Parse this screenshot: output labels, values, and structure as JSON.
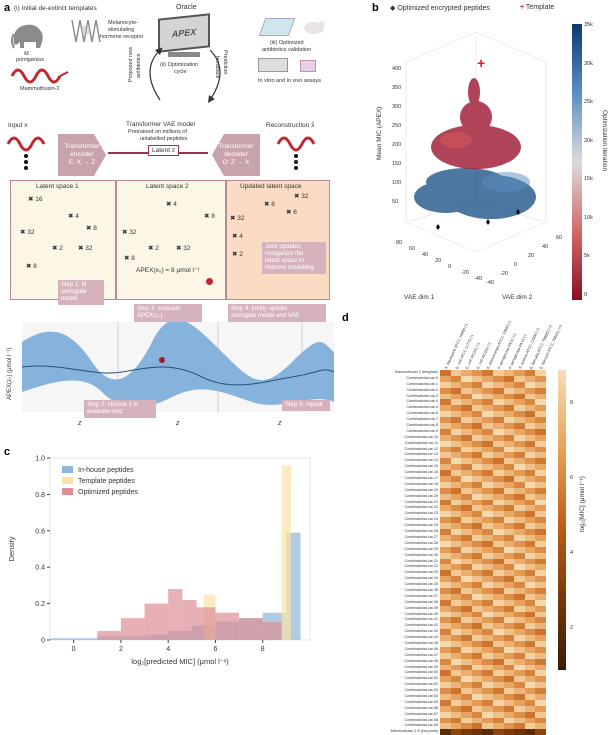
{
  "panel_a": {
    "letter": "a",
    "initial_title": "(i) Initial de-extinct templates",
    "species": "M.",
    "species2": "primigenius",
    "receptor": "Melanocyte-",
    "receptor2": "stimulating",
    "receptor3": "hormone receptor",
    "peptide": "Mammuthusin-2",
    "oracle_title": "Oracle",
    "oracle_screen": "APEX",
    "proposed": "Proposed new",
    "proposed2": "antibiotics",
    "cycle": "(ii) Optimization",
    "cycle2": "cycle",
    "feedback": "Prediction",
    "feedback2": "feedback",
    "validation": "(iii) Optimized",
    "validation2": "antibiotics validation",
    "assays": "In vitro and in vivo assays",
    "input": "Input x",
    "vae_title": "Transformer VAE model",
    "vae_sub": "Pretrained on millions of",
    "vae_sub2": "unlabelled peptides",
    "encoder": "Transformer",
    "encoder2": "encoder",
    "encoder3": "E: X → Z",
    "latent": "Latent z",
    "decoder": "Transformer",
    "decoder2": "decoder",
    "decoder3": "D: Z → X",
    "reconstruction": "Reconstruction x̂",
    "ls1": "Latent space 1",
    "ls2": "Latent space 2",
    "ls3": "Updated latent space",
    "apex_eq": "APEX(x₀) = 8 μmol l⁻¹",
    "joint": "Joint updates",
    "joint2": "reorganize the",
    "joint3": "latent space to",
    "joint4": "improve modelling",
    "step1": "Step 1: fit",
    "step1b": "surrogate",
    "step1c": "model",
    "step2": "Step 2: choose z to",
    "step2b": "evaluate next",
    "step3": "Step 3: evaluate",
    "step3b": "APEX(z₀)",
    "step4": "Step 4: jointly update",
    "step4b": "surrogate model and VAE",
    "step5": "Step 5: repeat",
    "y_axis": "APEX(z₀) (μmol l⁻¹)",
    "z1": "z",
    "z2": "z",
    "z3": "z",
    "nums_ls1": [
      "16",
      "4",
      "8",
      "32",
      "2",
      "32",
      "8"
    ],
    "nums_ls2": [
      "4",
      "8",
      "32",
      "2",
      "32",
      "8"
    ],
    "nums_ls3": [
      "32",
      "8",
      "6",
      "32",
      "4",
      "2"
    ]
  },
  "panel_b": {
    "letter": "b",
    "legend1": "Optimized encrypted peptides",
    "legend2": "Template",
    "zlabel": "Mean MIC (APEX)",
    "xlabel": "VAE dim 1",
    "ylabel": "VAE dim 2",
    "colorbar_label": "Optimization iteration",
    "colorbar_ticks": [
      "35k",
      "30k",
      "25k",
      "20k",
      "15k",
      "10k",
      "5k",
      "0"
    ],
    "z_ticks": [
      "400",
      "350",
      "300",
      "250",
      "200",
      "150",
      "100",
      "50"
    ],
    "x_ticks": [
      "80",
      "60",
      "40",
      "20",
      "0",
      "-20",
      "-40"
    ],
    "y_ticks": [
      "-40",
      "-20",
      "0",
      "20",
      "40",
      "60"
    ],
    "colors": {
      "low": "#b0102a",
      "high": "#0d3f73"
    }
  },
  "panel_c": {
    "letter": "c",
    "chart_data": {
      "type": "bar",
      "xlabel": "log₂[predicted MIC] (μmol l⁻¹)",
      "ylabel": "Density",
      "xlim": [
        -1,
        10
      ],
      "ylim": [
        0,
        1.0
      ],
      "x_ticks": [
        "0",
        "2",
        "4",
        "6",
        "8"
      ],
      "y_ticks": [
        "0",
        "0.2",
        "0.4",
        "0.6",
        "0.8",
        "1.0"
      ],
      "legend": [
        "In-house peptides",
        "Template peptides",
        "Optimized peptides"
      ],
      "series": [
        {
          "name": "In-house peptides",
          "color": "#8fb5d8",
          "bins": [
            [
              -1,
              0,
              0.01
            ],
            [
              0,
              1,
              0.01
            ],
            [
              1,
              2,
              0.02
            ],
            [
              2,
              3,
              0.02
            ],
            [
              3,
              4,
              0.03
            ],
            [
              4,
              5,
              0.05
            ],
            [
              5,
              6,
              0.08
            ],
            [
              6,
              7,
              0.1
            ],
            [
              7,
              8,
              0.12
            ],
            [
              8,
              9,
              0.15
            ],
            [
              9,
              9.6,
              0.59
            ]
          ]
        },
        {
          "name": "Template peptides",
          "color": "#fbe3a6",
          "bins": [
            [
              5.5,
              6,
              0.25
            ],
            [
              8.8,
              9.2,
              0.96
            ]
          ]
        },
        {
          "name": "Optimized peptides",
          "color": "#dd8f94",
          "bins": [
            [
              1,
              2,
              0.05
            ],
            [
              2,
              3,
              0.12
            ],
            [
              3,
              4,
              0.2
            ],
            [
              4,
              4.6,
              0.28
            ],
            [
              4.6,
              5.2,
              0.22
            ],
            [
              5.2,
              6,
              0.18
            ],
            [
              6,
              7,
              0.15
            ],
            [
              7,
              8,
              0.12
            ],
            [
              8,
              8.8,
              0.1
            ]
          ]
        }
      ]
    }
  },
  "panel_d": {
    "letter": "d",
    "colorbar_label": "log₂[MIC] (μmol l⁻¹)",
    "colorbar_ticks": [
      "8",
      "6",
      "4",
      "2"
    ],
    "columns": [
      "A. baumannii ATCC 19606 (-)",
      "E. coli ATCC 11775 (-)",
      "E. coli AIC221 (-)",
      "E. coli AIC222 (-)",
      "K. pneumoniae ATCC 13883 (-)",
      "P. aeruginosa PAO1 (-)",
      "P. aeruginosa PA14 (-)",
      "S. aureus ATCC 12600 (+)",
      "E. faecalis ATCC 700802 (+)",
      "E. faecium ATCC 700221 (+)"
    ],
    "first_row": "Mammuthusin-2 (template)",
    "last_row": "Mammuthusin-2-9 (end-point)",
    "row_prefix": "Combinatorial-var-",
    "n_rows": 62
  }
}
